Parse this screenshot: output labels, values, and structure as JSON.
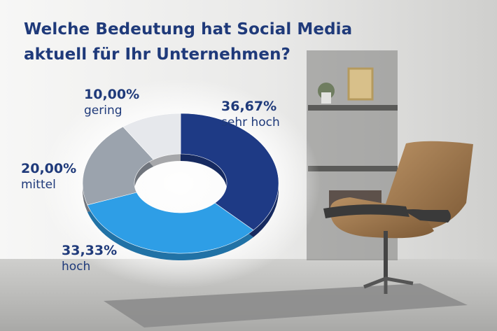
{
  "title_lines": [
    "Welche Bedeutung hat Social Media",
    "aktuell für Ihr Unternehmen?"
  ],
  "colors": {
    "title": "#1f3a7a",
    "sehr_hoch": "#1e3a85",
    "hoch": "#2e9ee6",
    "mittel": "#9ba3ad",
    "gering": "#e6e8ec"
  },
  "chart_data": {
    "type": "pie",
    "style": "donut",
    "title": "Welche Bedeutung hat Social Media aktuell für Ihr Unternehmen?",
    "slices": [
      {
        "label": "sehr hoch",
        "value": 36.67,
        "value_label": "36,67%",
        "color": "#1e3a85"
      },
      {
        "label": "hoch",
        "value": 33.33,
        "value_label": "33,33%",
        "color": "#2e9ee6"
      },
      {
        "label": "mittel",
        "value": 20.0,
        "value_label": "20,00%",
        "color": "#9ba3ad"
      },
      {
        "label": "gering",
        "value": 10.0,
        "value_label": "10,00%",
        "color": "#e6e8ec"
      }
    ]
  }
}
